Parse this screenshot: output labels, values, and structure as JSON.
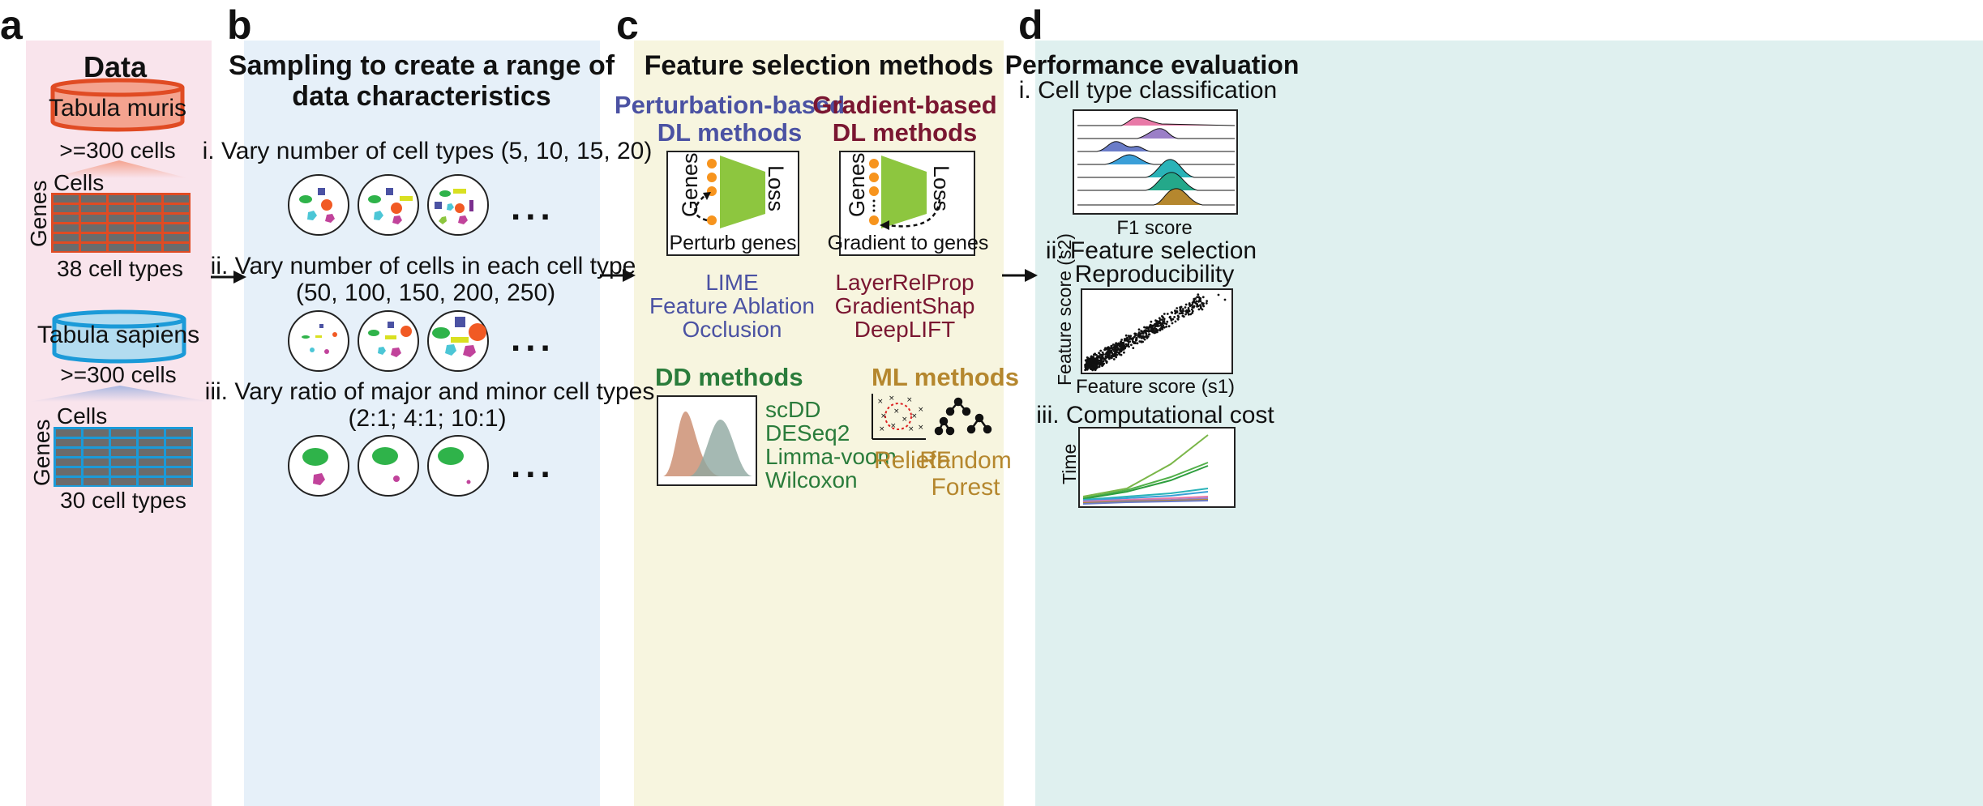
{
  "panels": {
    "a": {
      "label": "a",
      "title": "Data",
      "db1": {
        "name": "Tabula muris",
        "cells_note": ">=300 cells",
        "matrix_top": "Cells",
        "matrix_side": "Genes",
        "types": "38 cell types"
      },
      "db2": {
        "name": "Tabula sapiens",
        "cells_note": ">=300 cells",
        "matrix_top": "Cells",
        "matrix_side": "Genes",
        "types": "30 cell types"
      }
    },
    "b": {
      "label": "b",
      "title_line1": "Sampling to create a range of",
      "title_line2": "data characteristics",
      "step1": "i. Vary number of cell types (5, 10, 15, 20)",
      "step2_line1": "ii. Vary number of cells in each cell type",
      "step2_line2": "(50, 100, 150, 200, 250)",
      "step3_line1": "iii. Vary ratio of major and minor cell types",
      "step3_line2": "(2:1; 4:1; 10:1)",
      "ellipsis": "..."
    },
    "c": {
      "label": "c",
      "title": "Feature selection methods",
      "perturb": {
        "title_line1": "Perturbation-based",
        "title_line2": "DL methods",
        "axis_genes": "Genes",
        "axis_loss": "Loss",
        "caption": "Perturb genes",
        "methods": [
          "LIME",
          "Feature Ablation",
          "Occlusion"
        ]
      },
      "gradient": {
        "title_line1": "Gradient-based",
        "title_line2": "DL methods",
        "axis_genes": "Genes",
        "axis_loss": "Loss",
        "caption": "Gradient to genes",
        "methods": [
          "LayerRelProp",
          "GradientShap",
          "DeepLIFT"
        ]
      },
      "dd": {
        "title": "DD methods",
        "methods": [
          "scDD",
          "DESeq2",
          "Limma-voom",
          "Wilcoxon"
        ]
      },
      "ml": {
        "title": "ML methods",
        "relief": "ReliefF",
        "rf_line1": "Random",
        "rf_line2": "Forest"
      }
    },
    "d": {
      "label": "d",
      "title": "Performance evaluation",
      "sub1": "i. Cell type classification",
      "sub1_xlabel": "F1 score",
      "sub2_line1": "ii. Feature selection",
      "sub2_line2": "Reproducibility",
      "sub2_ylabel": "Feature  score (s2)",
      "sub2_xlabel": "Feature score (s1)",
      "sub3": "iii. Computational cost",
      "sub3_ylabel": "Time"
    }
  },
  "colors": {
    "panel_a_bg": "#f9e4ec",
    "panel_b_bg": "#e6f0f9",
    "panel_c_bg": "#f7f5df",
    "panel_d_bg": "#dff0ef",
    "tm_fill": "#f4a38f",
    "tm_stroke": "#e04b23",
    "ts_fill": "#b3dcf0",
    "ts_stroke": "#1b9ad8",
    "perturb_title": "#4b52a3",
    "gradient_title": "#7a1631",
    "dd_title": "#2a7c3b",
    "ml_title": "#b5872e",
    "net_green": "#8dc63f",
    "node_orange": "#f7941d"
  }
}
